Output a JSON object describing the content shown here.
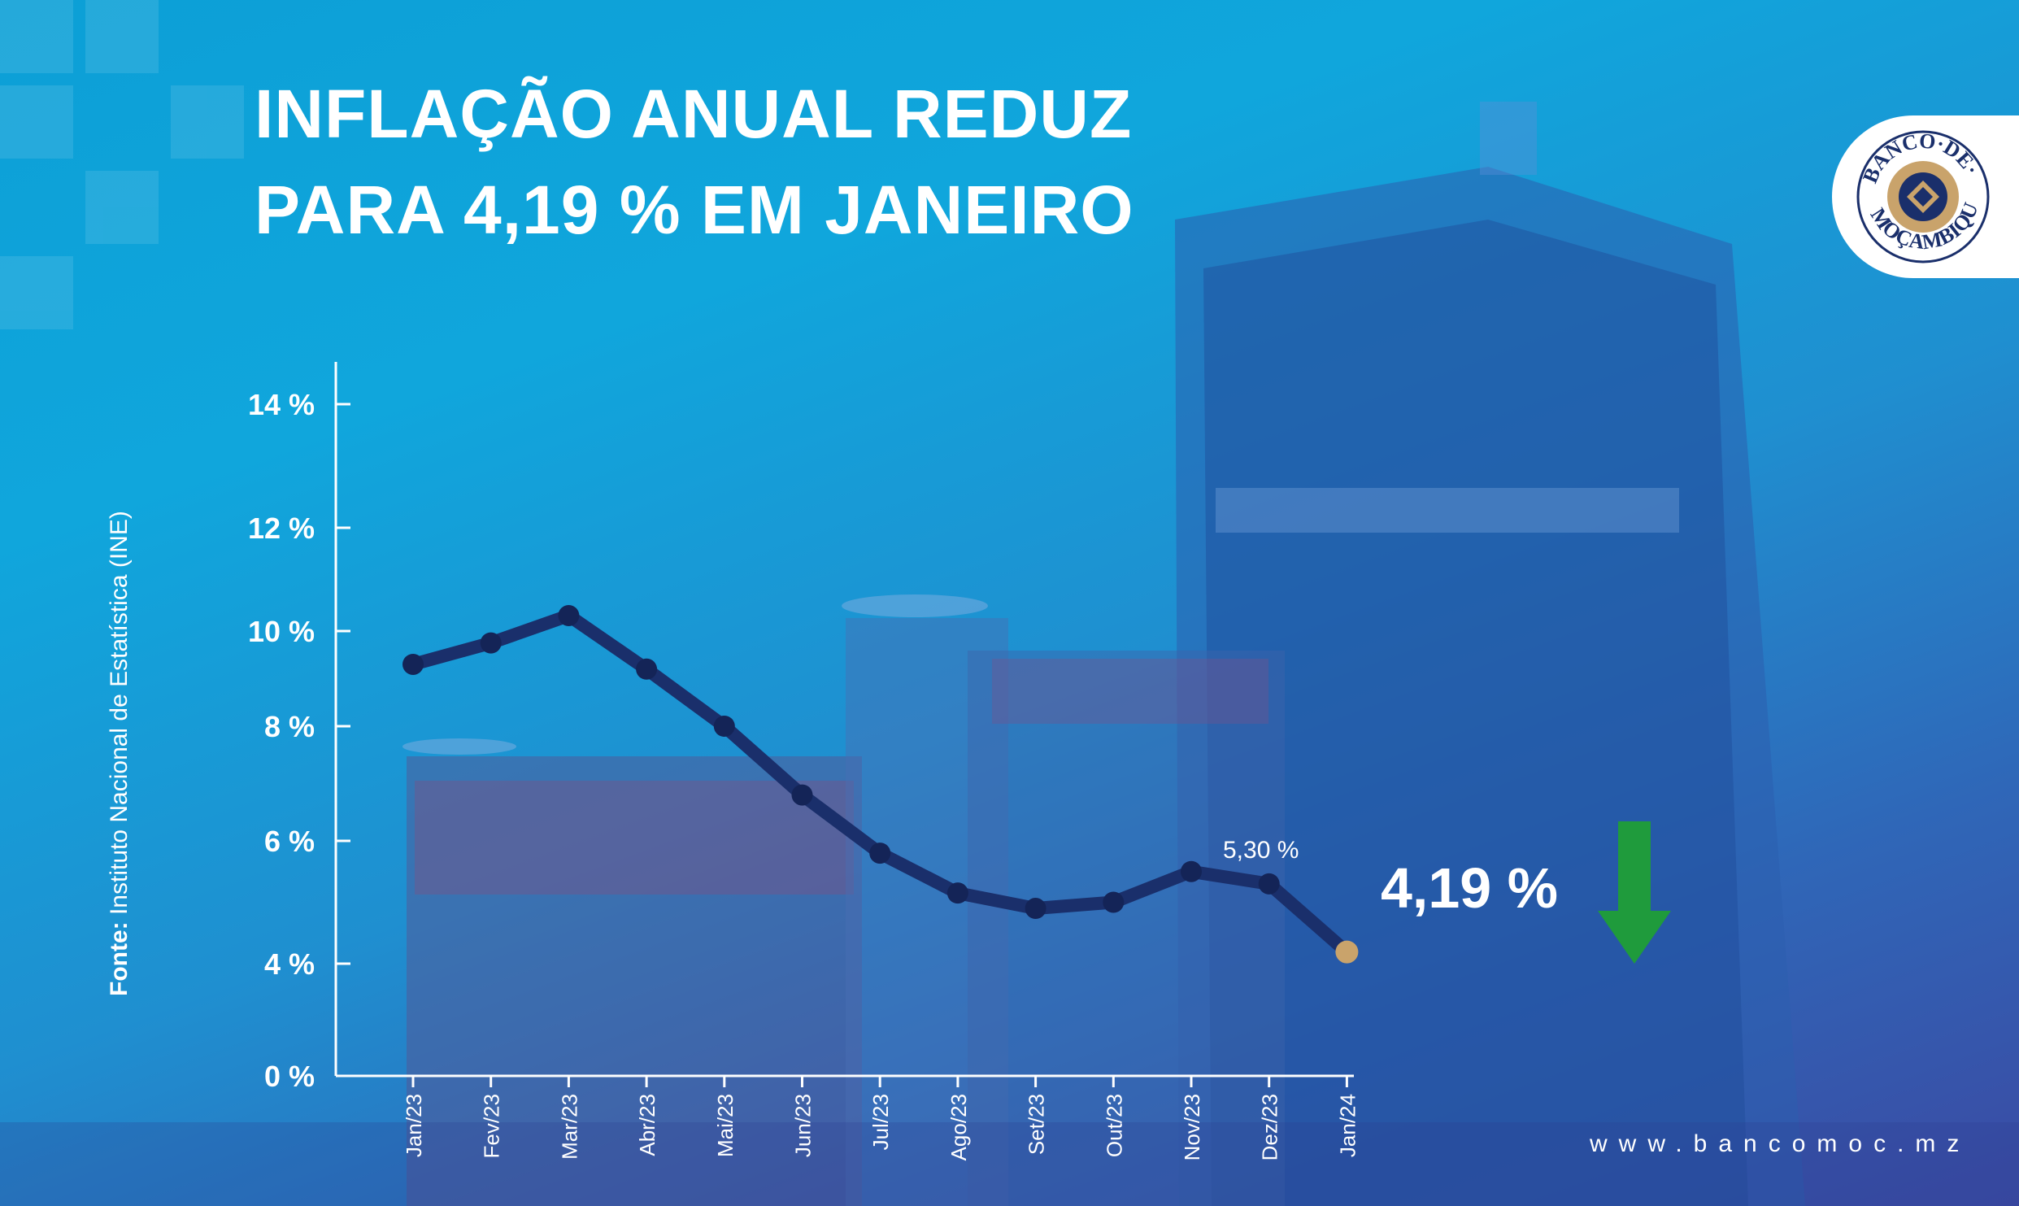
{
  "header": {
    "title_line1": "INFLAÇÃO ANUAL REDUZ",
    "title_line2": "PARA 4,19 % EM JANEIRO"
  },
  "logo": {
    "text_top": "BANCO·DE·",
    "text_bottom": "MOÇAMBIQUE"
  },
  "source": {
    "label": "Fonte:",
    "value": " Instituto Nacional de Estatística (INE)"
  },
  "website": "www.bancomoc.mz",
  "highlight": {
    "value_label": "4,19 %",
    "arrow_icon": "down-arrow-icon",
    "arrow_color": "#1f9b3c"
  },
  "colors": {
    "line": "#1a2f6b",
    "point": "#142457",
    "last_point": "#c9a36b",
    "axis": "#ffffff"
  },
  "chart_data": {
    "type": "line",
    "categories": [
      "Jan/23",
      "Fev/23",
      "Mar/23",
      "Abr/23",
      "Mai/23",
      "Jun/23",
      "Jul/23",
      "Ago/23",
      "Set/23",
      "Out/23",
      "Nov/23",
      "Dez/23",
      "Jan/24"
    ],
    "series": [
      {
        "values": [
          9.3,
          9.75,
          10.3,
          9.2,
          8.0,
          6.8,
          5.8,
          5.15,
          4.9,
          5.0,
          5.5,
          5.3,
          4.19
        ]
      }
    ],
    "yticks": [
      {
        "value": 0,
        "label": "0 %"
      },
      {
        "value": 4,
        "label": "4 %"
      },
      {
        "value": 6,
        "label": "6 %"
      },
      {
        "value": 8,
        "label": "8 %"
      },
      {
        "value": 10,
        "label": "10 %"
      },
      {
        "value": 12,
        "label": "12 %"
      },
      {
        "value": 14,
        "label": "14 %"
      }
    ],
    "annotations": [
      {
        "category": "Dez/23",
        "label": "5,30 %"
      }
    ],
    "grid": false
  }
}
